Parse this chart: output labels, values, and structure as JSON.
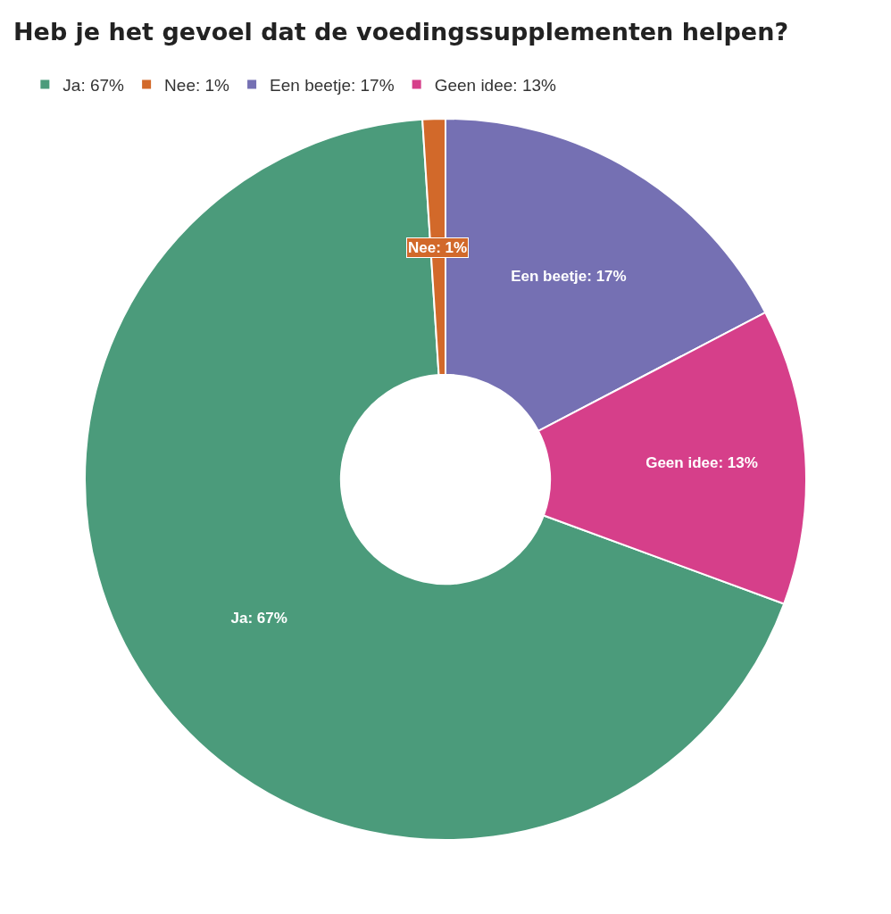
{
  "chart_data": {
    "type": "donut",
    "title": "Heb je het gevoel dat de voedingssupplementen helpen?",
    "categories": [
      "Ja: 67%",
      "Nee: 1%",
      "Een beetje: 17%",
      "Geen idee: 13%"
    ],
    "values": [
      67,
      1,
      17,
      13
    ],
    "colors": [
      "#4b9b7b",
      "#d2692a",
      "#7570b3",
      "#d63f8a"
    ],
    "legend": "top left"
  }
}
